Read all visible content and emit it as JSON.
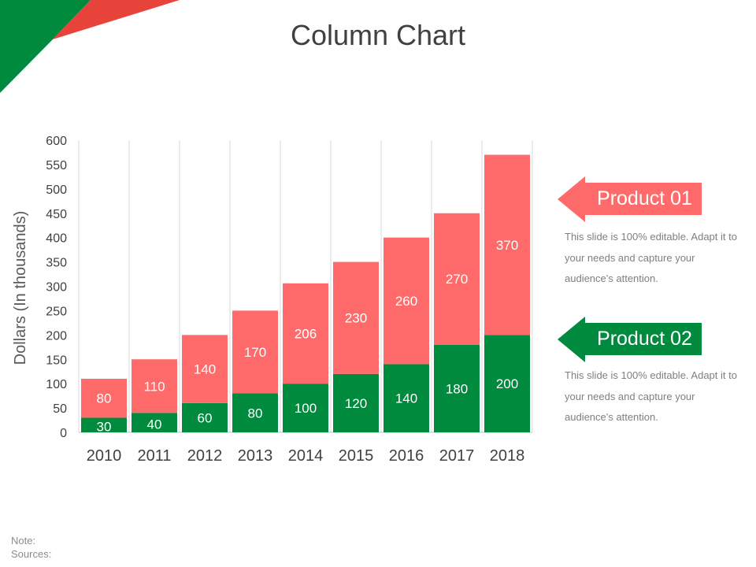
{
  "title": "Column Chart",
  "colors": {
    "product01": "#ff6b6b",
    "product02": "#008a3e",
    "deco_red": "#e8433a"
  },
  "chart_data": {
    "type": "bar",
    "stacked": true,
    "categories": [
      "2010",
      "2011",
      "2012",
      "2013",
      "2014",
      "2015",
      "2016",
      "2017",
      "2018"
    ],
    "series": [
      {
        "name": "Product 02",
        "values": [
          30,
          40,
          60,
          80,
          100,
          120,
          140,
          180,
          200
        ]
      },
      {
        "name": "Product 01",
        "values": [
          80,
          110,
          140,
          170,
          206,
          230,
          260,
          270,
          370
        ]
      }
    ],
    "ylabel": "Dollars (In thousands)",
    "xlabel": "",
    "ylim": [
      0,
      600
    ],
    "yticks": [
      0,
      50,
      100,
      150,
      200,
      250,
      300,
      350,
      400,
      450,
      500,
      550,
      600
    ],
    "grid": "vertical"
  },
  "legend": [
    {
      "label": "Product 01",
      "description": "This slide is 100% editable. Adapt it to your needs and capture your audience's attention."
    },
    {
      "label": "Product 02",
      "description": "This slide is 100% editable. Adapt it to your needs and capture your audience's attention."
    }
  ],
  "footer": {
    "note": "Note:",
    "sources": "Sources:"
  }
}
